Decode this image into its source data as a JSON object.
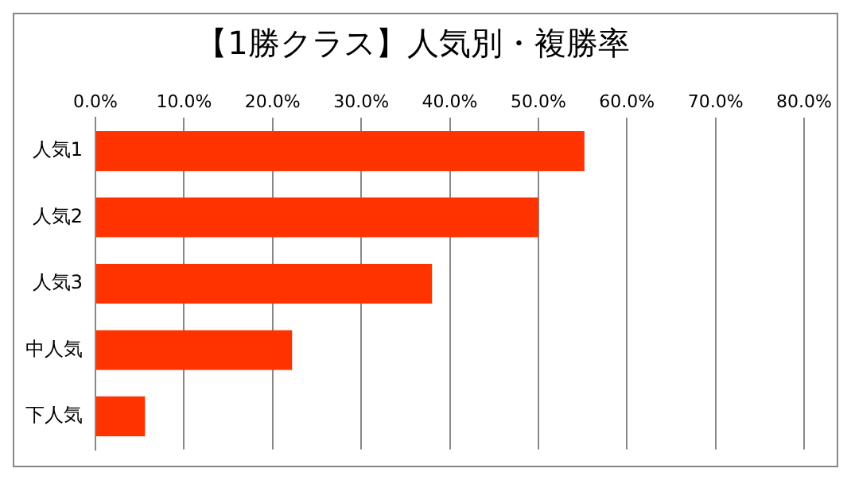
{
  "chart_data": {
    "type": "bar",
    "orientation": "horizontal",
    "title": "【1勝クラス】人気別・複勝率",
    "categories": [
      "人気1",
      "人気2",
      "人気3",
      "中人気",
      "下人気"
    ],
    "values": [
      55.2,
      50.0,
      38.0,
      22.2,
      5.6
    ],
    "color": "#ff3300",
    "xlim": [
      0,
      80
    ],
    "xticks": [
      {
        "value": 0,
        "label": "0.0%"
      },
      {
        "value": 10,
        "label": "10.0%"
      },
      {
        "value": 20,
        "label": "20.0%"
      },
      {
        "value": 30,
        "label": "30.0%"
      },
      {
        "value": 40,
        "label": "40.0%"
      },
      {
        "value": 50,
        "label": "50.0%"
      },
      {
        "value": 60,
        "label": "60.0%"
      },
      {
        "value": 70,
        "label": "70.0%"
      },
      {
        "value": 80,
        "label": "80.0%"
      }
    ],
    "grid": "x"
  }
}
